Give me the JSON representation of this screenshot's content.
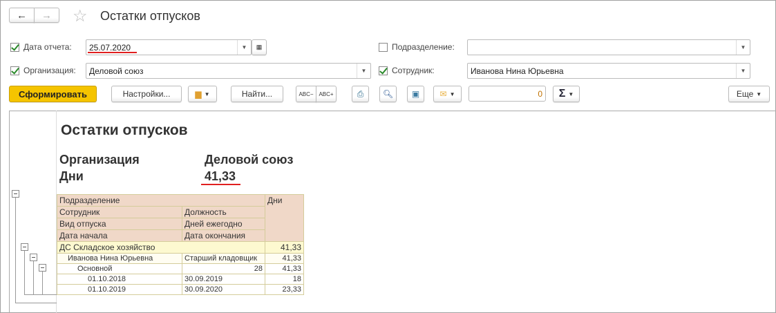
{
  "window": {
    "title": "Остатки отпусков"
  },
  "nav": {
    "back": "←",
    "forward": "→",
    "favorite": "☆"
  },
  "filters": {
    "report_date": {
      "label": "Дата отчета:",
      "checked": true,
      "value": "25.07.2020"
    },
    "organization": {
      "label": "Организация:",
      "checked": true,
      "value": "Деловой союз"
    },
    "department": {
      "label": "Подразделение:",
      "checked": false,
      "value": ""
    },
    "employee": {
      "label": "Сотрудник:",
      "checked": true,
      "value": "Иванова Нина Юрьевна"
    }
  },
  "toolbar": {
    "generate": "Сформировать",
    "settings": "Настройки...",
    "find": "Найти...",
    "sum_value": "0",
    "sigma": "Σ",
    "more": "Еще"
  },
  "colors": {
    "accent": "#f5c400",
    "header_bg": "#f0d8c8",
    "group_bg": "#fdf9d0",
    "underline": "#e02020"
  },
  "report": {
    "title": "Остатки отпусков",
    "org_label": "Организация",
    "org_value": "Деловой союз",
    "days_label": "Дни",
    "days_value": "41,33",
    "headers": {
      "department": "Подразделение",
      "days": "Дни",
      "employee": "Сотрудник",
      "position": "Должность",
      "vacation_type": "Вид отпуска",
      "days_annual": "Дней ежегодно",
      "start": "Дата начала",
      "end": "Дата окончания"
    },
    "group": {
      "name": "ДС Складское хозяйство",
      "days": "41,33"
    },
    "employee_row": {
      "name": "Иванова Нина Юрьевна",
      "position": "Старший кладовщик",
      "days": "41,33"
    },
    "type_row": {
      "name": "Основной",
      "annual": "28",
      "days": "41,33"
    },
    "periods": [
      {
        "start": "01.10.2018",
        "end": "30.09.2019",
        "days": "18"
      },
      {
        "start": "01.10.2019",
        "end": "30.09.2020",
        "days": "23,33"
      }
    ]
  }
}
